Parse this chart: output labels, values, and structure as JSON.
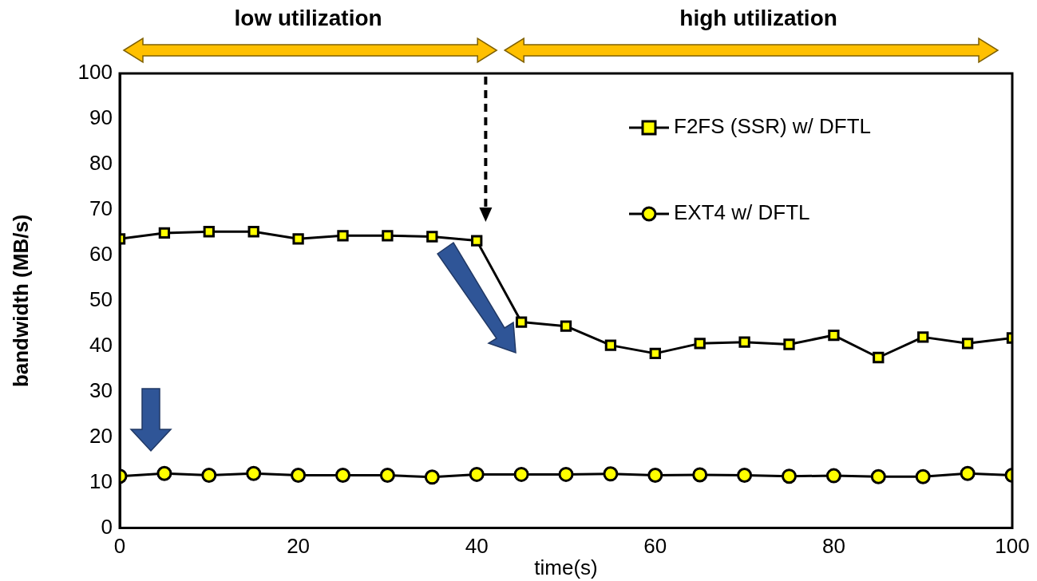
{
  "chart_data": {
    "type": "line",
    "xlabel": "time(s)",
    "ylabel": "bandwidth (MB/s)",
    "annotations": [
      "low utilization",
      "high utilization"
    ],
    "x": [
      0,
      5,
      10,
      15,
      20,
      25,
      30,
      35,
      40,
      45,
      50,
      55,
      60,
      65,
      70,
      75,
      80,
      85,
      90,
      95,
      100
    ],
    "series": [
      {
        "name": "F2FS (SSR) w/ DFTL",
        "color": "#ffff00",
        "marker": "square",
        "values": [
          63.6,
          64.9,
          65.2,
          65.2,
          63.6,
          64.3,
          64.3,
          64.1,
          63.2,
          45.3,
          44.4,
          40.2,
          38.4,
          40.6,
          40.9,
          40.4,
          42.4,
          37.5,
          42.0,
          40.6,
          41.8
        ]
      },
      {
        "name": "EXT4 w/ DFTL",
        "color": "#ffff00",
        "marker": "circle",
        "values": [
          11.4,
          12.0,
          11.6,
          12.0,
          11.6,
          11.6,
          11.6,
          11.2,
          11.8,
          11.8,
          11.8,
          11.9,
          11.6,
          11.7,
          11.6,
          11.4,
          11.5,
          11.3,
          11.3,
          12.0,
          11.6
        ]
      }
    ],
    "xlim": [
      0,
      100
    ],
    "xticks": [
      0,
      20,
      40,
      60,
      80,
      100
    ],
    "ylim": [
      0,
      100
    ],
    "yticks": [
      0,
      10,
      20,
      30,
      40,
      50,
      60,
      70,
      80,
      90,
      100
    ],
    "grid": false,
    "legend": "top right",
    "line_style": "solid"
  }
}
